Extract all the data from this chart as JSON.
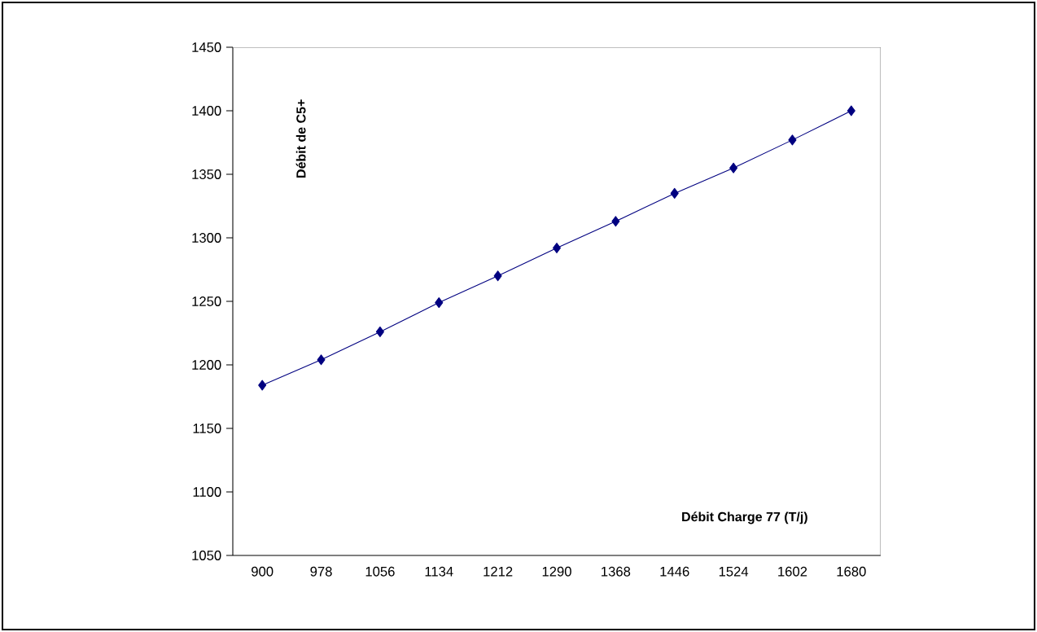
{
  "chart_data": {
    "type": "line",
    "xlabel": "Débit Charge 77 (T/j)",
    "ylabel": "Débit de C5+",
    "categories": [
      "900",
      "978",
      "1056",
      "1134",
      "1212",
      "1290",
      "1368",
      "1446",
      "1524",
      "1602",
      "1680"
    ],
    "values": [
      1184,
      1204,
      1226,
      1249,
      1270,
      1292,
      1313,
      1335,
      1355,
      1377,
      1400
    ],
    "color": "#000080",
    "marker": "diamond",
    "line_style": "solid",
    "ylim": [
      1050,
      1450
    ],
    "yticks": [
      1050,
      1100,
      1150,
      1200,
      1250,
      1300,
      1350,
      1400,
      1450
    ],
    "grid": false
  }
}
